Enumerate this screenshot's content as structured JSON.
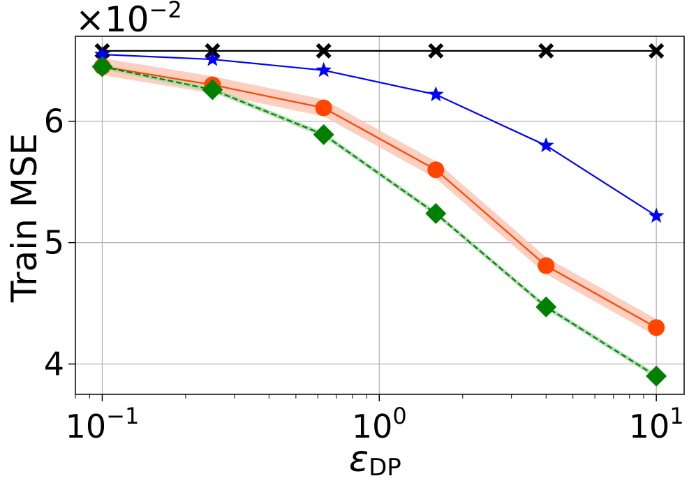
{
  "chart_data": {
    "type": "line",
    "title": "",
    "xlabel": "ε",
    "xlabel_subscript": "DP",
    "ylabel": "Train MSE",
    "xscale": "log",
    "xlim": [
      0.08,
      12.6
    ],
    "ylim": [
      0.0375,
      0.067
    ],
    "y_scale_factor": "×10",
    "y_scale_exponent": "−2",
    "grid": true,
    "x": [
      0.1,
      0.25,
      0.63,
      1.6,
      4.0,
      10.0
    ],
    "x_ticks": [
      {
        "value": 0.1,
        "base": "10",
        "exp": "−1"
      },
      {
        "value": 1,
        "base": "10",
        "exp": "0"
      },
      {
        "value": 10,
        "base": "10",
        "exp": "1"
      }
    ],
    "y_ticks": [
      {
        "value": 0.04,
        "label": "4"
      },
      {
        "value": 0.05,
        "label": "5"
      },
      {
        "value": 0.06,
        "label": "6"
      }
    ],
    "series": [
      {
        "name": "constant",
        "color": "#000000",
        "marker": "x",
        "line": "solid",
        "values": [
          0.0658,
          0.0658,
          0.0658,
          0.0658,
          0.0658,
          0.0658
        ]
      },
      {
        "name": "star",
        "color": "#0000ff",
        "marker": "star",
        "line": "solid",
        "values": [
          0.0655,
          0.0651,
          0.0642,
          0.0622,
          0.058,
          0.0522
        ]
      },
      {
        "name": "circle",
        "color": "#ff4500",
        "marker": "circle",
        "line": "solid",
        "band_color": "#fbc7b5",
        "band": 0.0007,
        "values": [
          0.0645,
          0.063,
          0.0611,
          0.056,
          0.0481,
          0.043
        ]
      },
      {
        "name": "diamond",
        "color": "#008000",
        "marker": "diamond",
        "line": "dashed",
        "band_color": "#a8d8a8",
        "band": 0.0002,
        "values": [
          0.0645,
          0.0626,
          0.0589,
          0.0524,
          0.0447,
          0.039
        ]
      }
    ]
  }
}
